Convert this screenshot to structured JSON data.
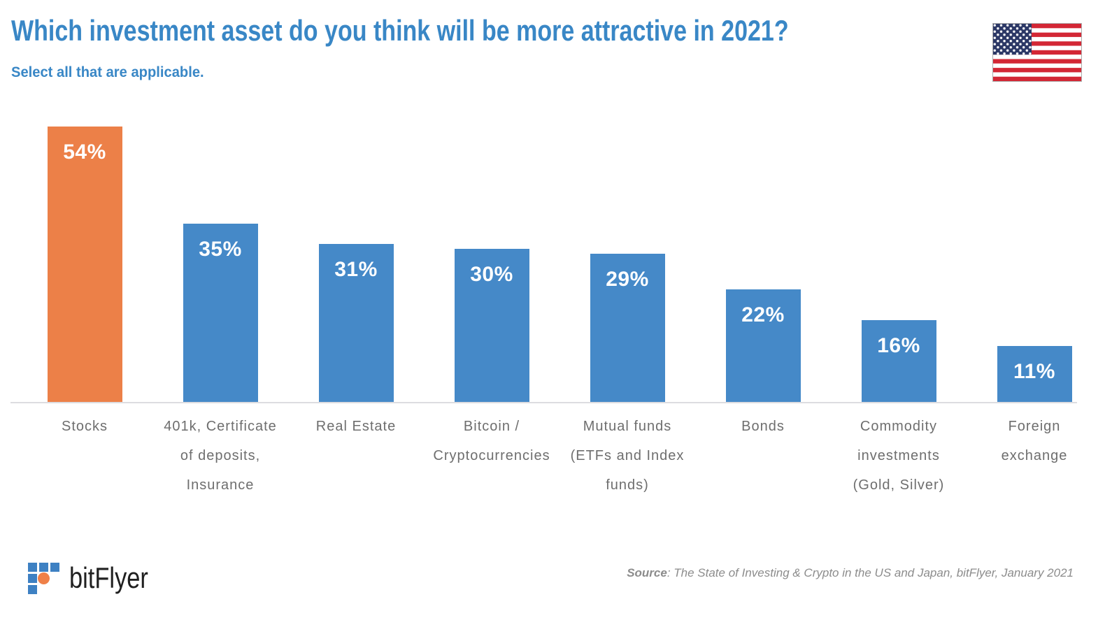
{
  "page": {
    "title": "Which investment asset do you think will be more attractive in 2021?",
    "subtitle": "Select all that are applicable.",
    "flag": "us-flag"
  },
  "chart_data": {
    "type": "bar",
    "title": "Which investment asset do you think will be more attractive in 2021?",
    "subtitle": "Select all that are applicable.",
    "categories": [
      "Stocks",
      "401k, Certificate of deposits, Insurance",
      "Real Estate",
      "Bitcoin / Cryptocurrencies",
      "Mutual funds (ETFs and Index funds)",
      "Bonds",
      "Commodity investments (Gold, Silver)",
      "Foreign exchange"
    ],
    "category_lines": [
      [
        "Stocks"
      ],
      [
        "401k, Certificate",
        "of deposits,",
        "Insurance"
      ],
      [
        "Real Estate"
      ],
      [
        "Bitcoin /",
        "Cryptocurrencies"
      ],
      [
        "Mutual funds",
        "(ETFs and Index",
        "funds)"
      ],
      [
        "Bonds"
      ],
      [
        "Commodity",
        "investments",
        "(Gold, Silver)"
      ],
      [
        "Foreign",
        "exchange"
      ]
    ],
    "values": [
      54,
      35,
      31,
      30,
      29,
      22,
      16,
      11
    ],
    "value_labels": [
      "54%",
      "35%",
      "31%",
      "30%",
      "29%",
      "22%",
      "16%",
      "11%"
    ],
    "unit": "%",
    "ylim": [
      0,
      54
    ],
    "grid": false,
    "legend": "none",
    "highlight_index": 0,
    "bar_color_default": "#4589C8",
    "bar_color_highlight": "#EC8048",
    "value_label_color": "#FFFFFF",
    "axis_label_color": "#6E6E6E"
  },
  "footer": {
    "logo_text": "bitFlyer",
    "logo_mark_blue": "#3E81C3",
    "logo_mark_orange": "#EF8048",
    "source_prefix": "Source",
    "source_rest": ": The State of Investing & Crypto in the US and Japan, bitFlyer, January 2021"
  },
  "colors": {
    "title_blue": "#3987C6",
    "baseline_gray": "#DDDDE0",
    "flag_red": "#D32735",
    "flag_navy": "#2C3866"
  }
}
